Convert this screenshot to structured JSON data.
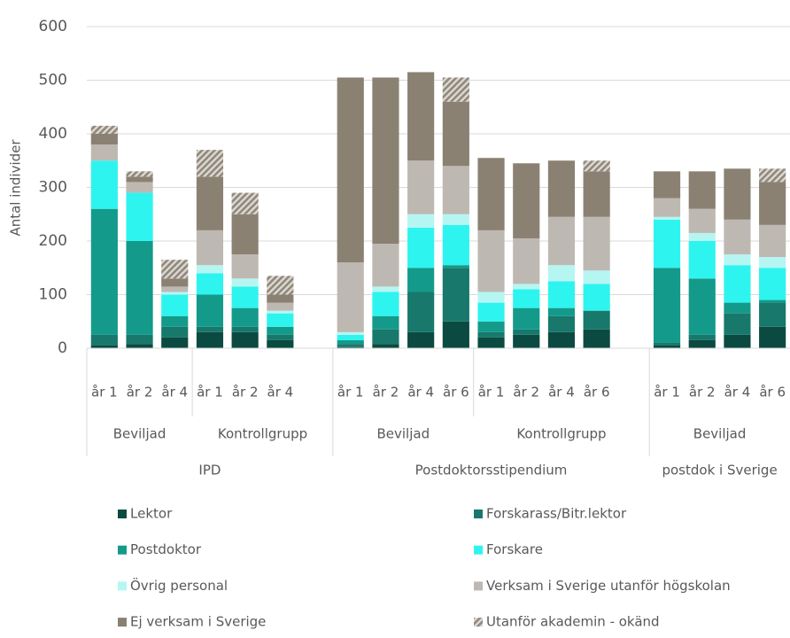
{
  "chart_data": {
    "type": "stacked_bar",
    "y_label": "Antal individer",
    "ylim": [
      0,
      600
    ],
    "yticks": [
      0,
      100,
      200,
      300,
      400,
      500,
      600
    ],
    "categories": [
      "år 1",
      "år 2",
      "år 4",
      "år 1",
      "år 2",
      "år 4",
      null,
      "år 1",
      "år 2",
      "år 4",
      "år 6",
      "år 1",
      "år 2",
      "år 4",
      "år 6",
      null,
      "år 1",
      "år 2",
      "år 4",
      "år 6"
    ],
    "groups": [
      {
        "label": "IPD",
        "subgroups": [
          "Beviljad",
          "Kontrollgrupp"
        ]
      },
      {
        "label": "Postdoktorsstipendium",
        "subgroups": [
          "Beviljad",
          "Kontrollgrupp"
        ]
      },
      {
        "label": "postdok i Sverige",
        "subgroups": [
          "Beviljad"
        ]
      }
    ],
    "series": [
      {
        "name": "Lektor",
        "color": "#0b4a41",
        "values": [
          5,
          8,
          20,
          30,
          30,
          15,
          null,
          2,
          8,
          30,
          50,
          20,
          25,
          30,
          35,
          null,
          5,
          15,
          25,
          40
        ]
      },
      {
        "name": "Forskarass/Bitr.lektor",
        "color": "#18786b",
        "values": [
          20,
          17,
          20,
          10,
          10,
          10,
          null,
          6,
          27,
          75,
          100,
          10,
          10,
          30,
          35,
          null,
          5,
          10,
          40,
          45
        ]
      },
      {
        "name": "Postdoktor",
        "color": "#149a8a",
        "values": [
          235,
          175,
          20,
          60,
          35,
          15,
          null,
          7,
          25,
          45,
          5,
          20,
          40,
          15,
          0,
          null,
          140,
          105,
          20,
          5
        ]
      },
      {
        "name": "Forskare",
        "color": "#2ef4ef",
        "values": [
          90,
          90,
          40,
          40,
          40,
          25,
          null,
          10,
          45,
          75,
          75,
          35,
          35,
          50,
          50,
          null,
          90,
          70,
          70,
          60
        ]
      },
      {
        "name": "Övrig personal",
        "color": "#b5f6f3",
        "values": [
          0,
          0,
          5,
          15,
          15,
          5,
          null,
          5,
          10,
          25,
          20,
          20,
          10,
          30,
          25,
          null,
          5,
          15,
          20,
          20
        ]
      },
      {
        "name": "Verksam i Sverige utanför högskolan",
        "color": "#bdb9b2",
        "values": [
          30,
          20,
          10,
          65,
          45,
          15,
          null,
          130,
          80,
          100,
          90,
          115,
          85,
          90,
          100,
          null,
          35,
          45,
          65,
          60
        ]
      },
      {
        "name": "Ej verksam i Sverige",
        "color": "#8b8173",
        "values": [
          20,
          10,
          15,
          100,
          75,
          15,
          null,
          345,
          310,
          165,
          120,
          135,
          140,
          105,
          85,
          null,
          50,
          70,
          95,
          80
        ]
      },
      {
        "name": "Utanför akademin - okänd",
        "color": "#9b9488",
        "pattern": "hatch",
        "values": [
          15,
          10,
          35,
          50,
          40,
          35,
          null,
          0,
          0,
          0,
          45,
          0,
          0,
          0,
          20,
          null,
          0,
          0,
          0,
          25
        ]
      }
    ]
  }
}
